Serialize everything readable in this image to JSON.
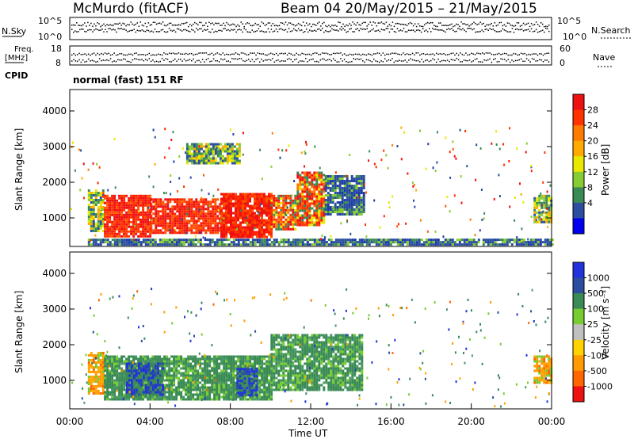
{
  "header": {
    "station": "McMurdo (fitACF)",
    "beam_dates": "Beam 04 20/May/2015 – 21/May/2015"
  },
  "strip": {
    "nsky_label": "N.Sky",
    "nsky_tick_top": "10^5",
    "nsky_tick_bottom": "10^0",
    "nsearch_label": "N.Search",
    "freq_label_line1": "Freq.",
    "freq_label_line2": "[MHz]",
    "freq_tick_top": "18",
    "freq_tick_bottom": "8",
    "nave_tick_top": "60",
    "nave_tick_bottom": "0",
    "nave_label": "Nave",
    "cpid_label": "CPID",
    "cpid_text": "normal (fast) 151 RF"
  },
  "power_colorbar": {
    "label": "Power [dB]",
    "ticks": [
      "28",
      "24",
      "20",
      "16",
      "12",
      "8",
      "4"
    ],
    "colors": [
      "#ee1111",
      "#ff3300",
      "#ff7a00",
      "#ffaa00",
      "#e8e800",
      "#88cc33",
      "#3a8a55",
      "#2b4ea0",
      "#0000ee"
    ]
  },
  "velocity_colorbar": {
    "label": "Velocity [m s⁻¹]",
    "ticks": [
      "1000",
      "500",
      "100",
      "25",
      "-25",
      "-100",
      "-500",
      "-1000"
    ],
    "colors": [
      "#2233dd",
      "#2b4ea0",
      "#3a8a55",
      "#77cc33",
      "#c0c0c0",
      "#ffd200",
      "#ff9a00",
      "#ff6600",
      "#ee1111"
    ]
  },
  "axes": {
    "ylabel": "Slant Range [km]",
    "xlabel": "Time UT",
    "yticks": [
      "4000",
      "3000",
      "2000",
      "1000"
    ],
    "xticks": [
      "00:00",
      "04:00",
      "08:00",
      "12:00",
      "16:00",
      "20:00",
      "00:00"
    ]
  },
  "chart_data": [
    {
      "type": "heatmap",
      "panel": "power",
      "xlabel": "Time UT",
      "ylabel": "Slant Range [km]",
      "x_range_hours": [
        0,
        24
      ],
      "y_range_km": [
        200,
        4600
      ],
      "colorbar": "Power [dB]",
      "colorbar_ticks": [
        28,
        24,
        20,
        16,
        12,
        8,
        4
      ],
      "regions": [
        {
          "t0": 0.9,
          "t1": 1.7,
          "r0": 600,
          "r1": 1800,
          "level": "mid"
        },
        {
          "t0": 1.7,
          "t1": 4.0,
          "r0": 500,
          "r1": 1650,
          "level": "high"
        },
        {
          "t0": 4.0,
          "t1": 7.5,
          "r0": 600,
          "r1": 1550,
          "level": "high"
        },
        {
          "t0": 7.5,
          "t1": 10.0,
          "r0": 450,
          "r1": 1700,
          "level": "high"
        },
        {
          "t0": 10.0,
          "t1": 11.3,
          "r0": 700,
          "r1": 1650,
          "level": "midhigh"
        },
        {
          "t0": 11.3,
          "t1": 12.7,
          "r0": 800,
          "r1": 2300,
          "level": "midhigh"
        },
        {
          "t0": 12.7,
          "t1": 14.6,
          "r0": 1100,
          "r1": 2200,
          "level": "low"
        },
        {
          "t0": 5.8,
          "t1": 8.5,
          "r0": 2500,
          "r1": 3100,
          "level": "mid"
        },
        {
          "t0": 23.1,
          "t1": 24.0,
          "r0": 900,
          "r1": 1650,
          "level": "mid"
        },
        {
          "t0": 0.9,
          "t1": 24.0,
          "r0": 250,
          "r1": 420,
          "level": "low"
        }
      ]
    },
    {
      "type": "heatmap",
      "panel": "velocity",
      "xlabel": "Time UT",
      "ylabel": "Slant Range [km]",
      "x_range_hours": [
        0,
        24
      ],
      "y_range_km": [
        200,
        4600
      ],
      "colorbar": "Velocity [m s⁻¹]",
      "colorbar_ticks": [
        1000,
        500,
        100,
        25,
        -25,
        -100,
        -500,
        -1000
      ],
      "regions": [
        {
          "t0": 0.9,
          "t1": 1.7,
          "r0": 650,
          "r1": 1800,
          "level": "neg"
        },
        {
          "t0": 1.7,
          "t1": 10.0,
          "r0": 450,
          "r1": 1700,
          "level": "pos_mid"
        },
        {
          "t0": 2.8,
          "t1": 4.6,
          "r0": 600,
          "r1": 1500,
          "level": "pos_high"
        },
        {
          "t0": 8.3,
          "t1": 9.3,
          "r0": 600,
          "r1": 1350,
          "level": "pos_high"
        },
        {
          "t0": 10.0,
          "t1": 14.6,
          "r0": 700,
          "r1": 2300,
          "level": "pos_mid"
        },
        {
          "t0": 23.1,
          "t1": 24.0,
          "r0": 900,
          "r1": 1700,
          "level": "neg"
        }
      ]
    }
  ]
}
